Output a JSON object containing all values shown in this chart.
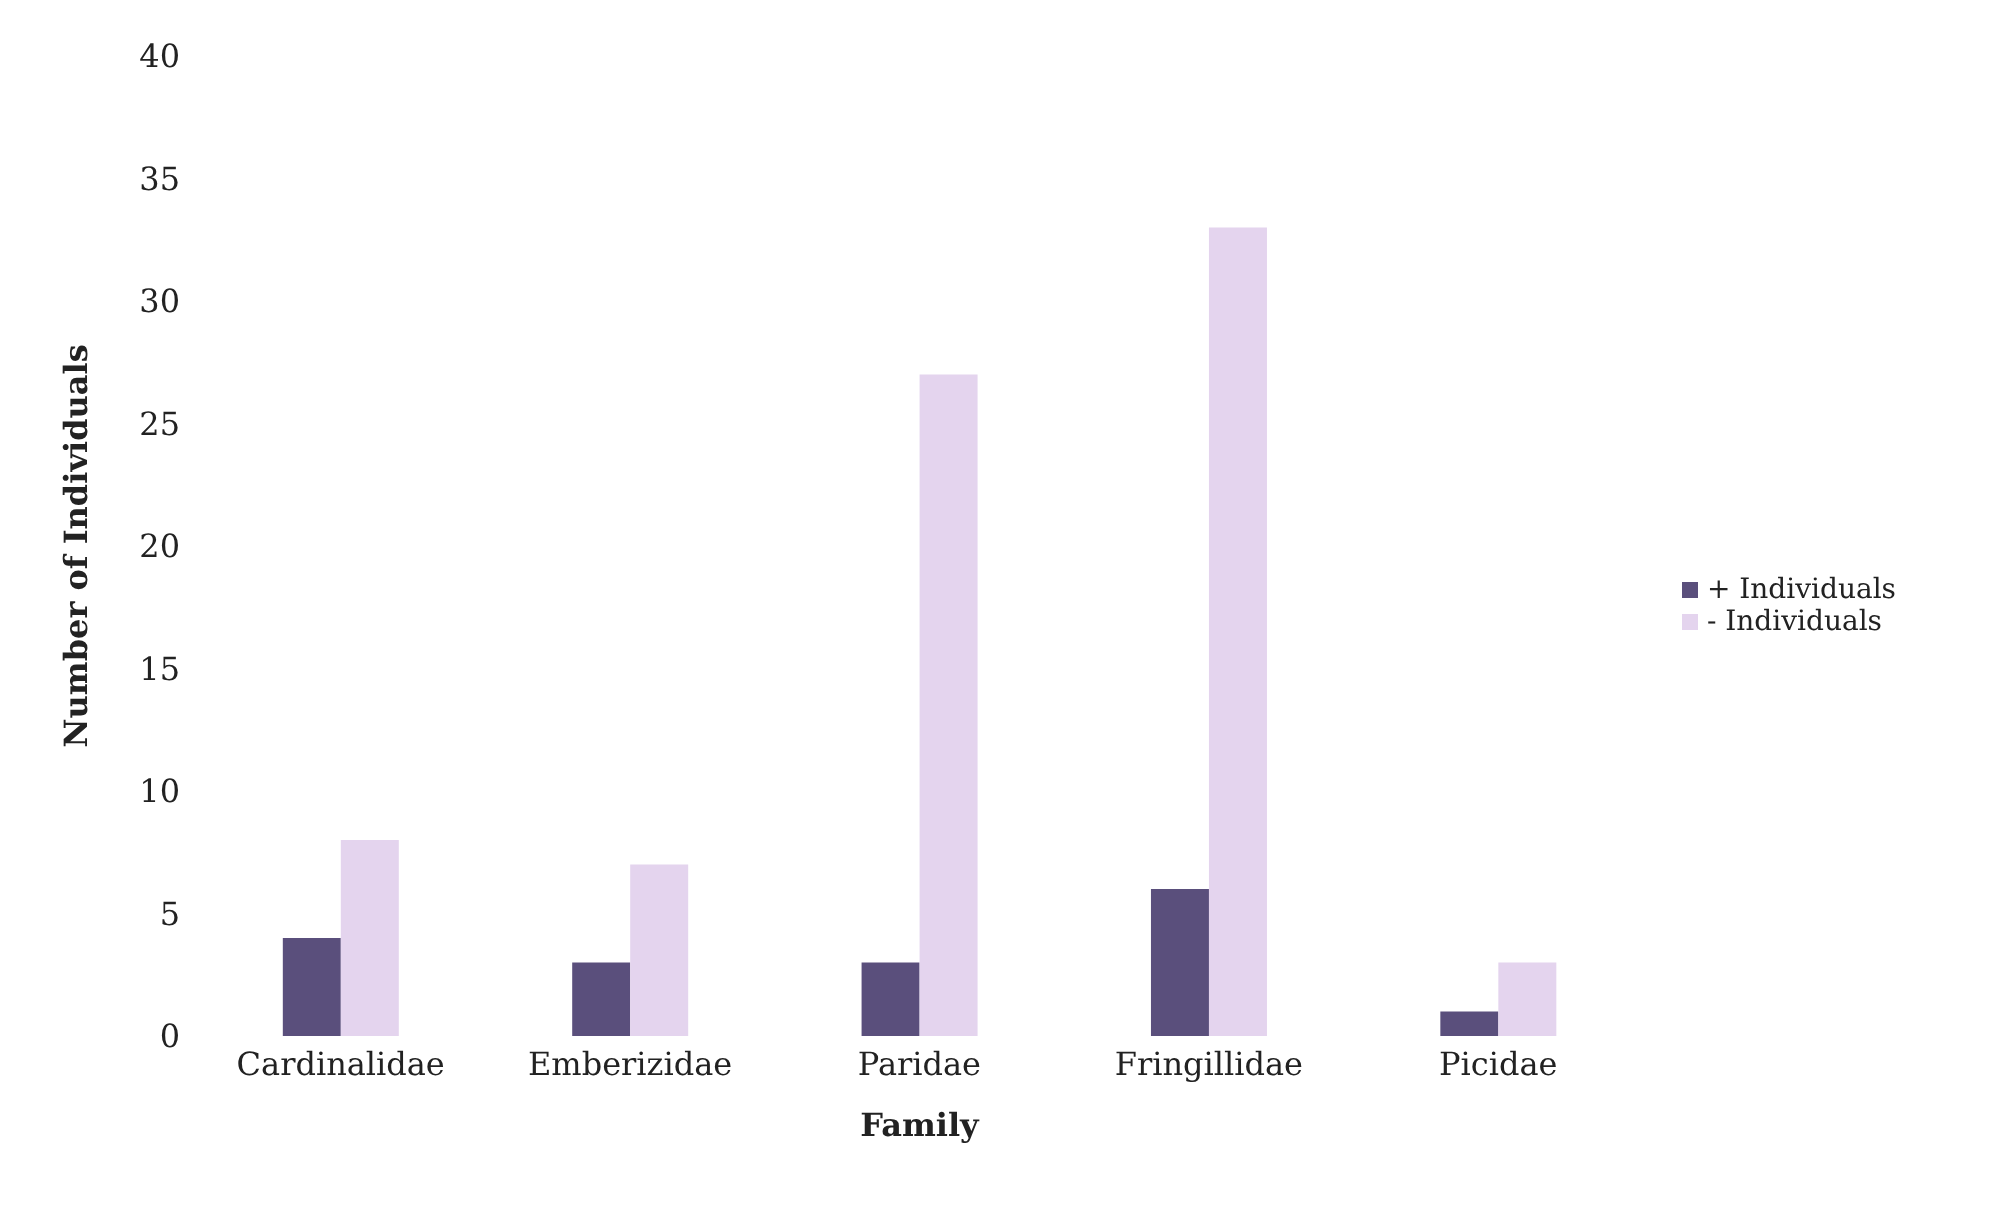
{
  "chart_data": {
    "type": "bar",
    "xlabel": "Family",
    "ylabel": "Number of Individuals",
    "categories": [
      "Cardinalidae",
      "Emberizidae",
      "Paridae",
      "Fringillidae",
      "Picidae"
    ],
    "series": [
      {
        "name": "+ Individuals",
        "color": "#5a4f7c",
        "values": [
          4,
          3,
          3,
          6,
          1
        ]
      },
      {
        "name": "- Individuals",
        "color": "#e4d4ee",
        "values": [
          8,
          7,
          27,
          33,
          3
        ]
      }
    ],
    "ylim": [
      0,
      40
    ],
    "yticks": [
      0,
      5,
      10,
      15,
      20,
      25,
      30,
      35,
      40
    ],
    "grid": false,
    "legend": "right"
  }
}
